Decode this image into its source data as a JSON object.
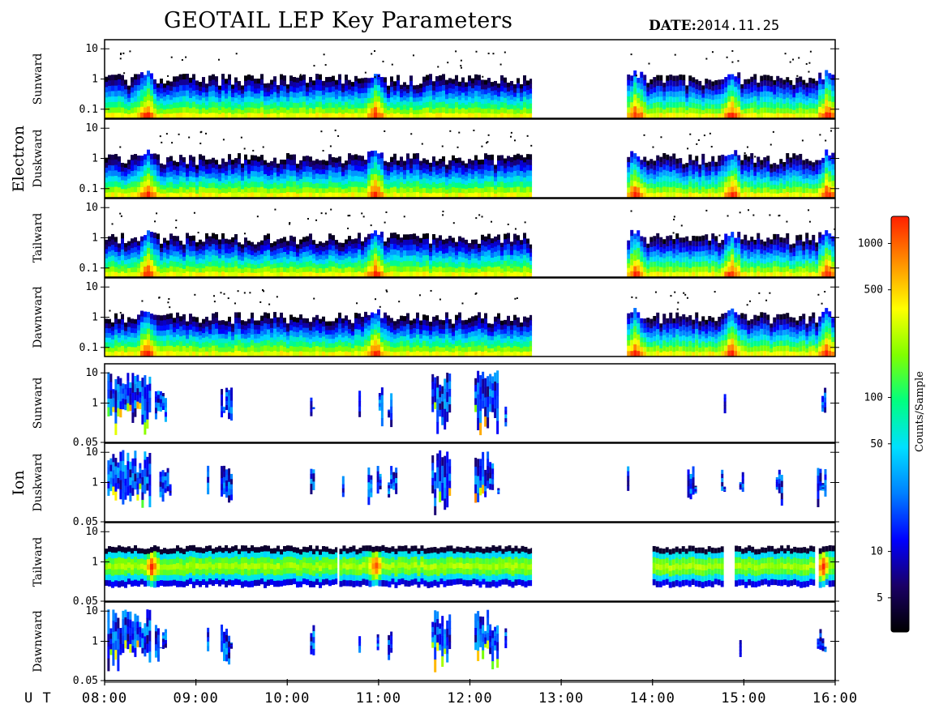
{
  "chart_data": {
    "type": "heatmap",
    "title": "GEOTAIL LEP Key Parameters",
    "date_label": "DATE:",
    "date_value": "2014.11.25",
    "x_axis": {
      "label": "U T",
      "range_hours": [
        8,
        16
      ],
      "tick_labels": [
        "08:00",
        "09:00",
        "10:00",
        "11:00",
        "12:00",
        "13:00",
        "14:00",
        "15:00",
        "16:00"
      ],
      "tick_hours": [
        8,
        9,
        10,
        11,
        12,
        13,
        14,
        15,
        16
      ]
    },
    "colorbar": {
      "label": "Counts/Sample",
      "scale": "log",
      "range": [
        3,
        1500
      ],
      "tick_labels": [
        "5",
        "10",
        "50",
        "100",
        "500",
        "1000"
      ],
      "tick_values": [
        5,
        10,
        50,
        100,
        500,
        1000
      ],
      "colors": [
        "#000000",
        "#1a0066",
        "#0000ff",
        "#0080ff",
        "#00e0ff",
        "#00ff80",
        "#80ff00",
        "#ffff00",
        "#ff9000",
        "#ff2000"
      ]
    },
    "groups": [
      {
        "name": "Electron",
        "panels": [
          {
            "label": "Sunward",
            "y_ticks": [
              "10",
              "1",
              "0.1"
            ],
            "y_values": [
              10,
              1,
              0.1
            ],
            "y_range": [
              0.05,
              20
            ],
            "data_intervals_ut": [
              [
                8.0,
                12.68
              ],
              [
                13.72,
                16.0
              ]
            ],
            "hot_spots_ut": [
              8.45,
              10.95,
              13.8,
              14.85,
              15.9
            ]
          },
          {
            "label": "Duskward",
            "y_ticks": [
              "10",
              "1",
              "0.1"
            ],
            "y_values": [
              10,
              1,
              0.1
            ],
            "y_range": [
              0.05,
              20
            ],
            "data_intervals_ut": [
              [
                8.0,
                12.68
              ],
              [
                13.72,
                16.0
              ]
            ],
            "hot_spots_ut": [
              8.45,
              10.95,
              13.8,
              14.85,
              15.9
            ]
          },
          {
            "label": "Tailward",
            "y_ticks": [
              "10",
              "1",
              "0.1"
            ],
            "y_values": [
              10,
              1,
              0.1
            ],
            "y_range": [
              0.05,
              20
            ],
            "data_intervals_ut": [
              [
                8.0,
                12.68
              ],
              [
                13.72,
                16.0
              ]
            ],
            "hot_spots_ut": [
              8.45,
              10.95,
              13.8,
              14.85,
              15.9
            ]
          },
          {
            "label": "Dawnward",
            "y_ticks": [
              "10",
              "1",
              "0.1"
            ],
            "y_values": [
              10,
              1,
              0.1
            ],
            "y_range": [
              0.05,
              20
            ],
            "data_intervals_ut": [
              [
                8.0,
                12.68
              ],
              [
                13.72,
                16.0
              ]
            ],
            "hot_spots_ut": [
              8.45,
              10.95,
              13.8,
              14.85,
              15.9
            ]
          }
        ]
      },
      {
        "name": "Ion",
        "panels": [
          {
            "label": "Sunward",
            "y_ticks": [
              "10",
              "1",
              "0.05"
            ],
            "y_values": [
              10,
              1,
              0.05
            ],
            "y_range": [
              0.05,
              20
            ],
            "patches_ut": [
              [
                8.03,
                8.5
              ],
              [
                8.55,
                8.68
              ],
              [
                9.27,
                9.4
              ],
              [
                10.25,
                10.3
              ],
              [
                10.78,
                10.8
              ],
              [
                11.0,
                11.04
              ],
              [
                11.1,
                11.14
              ],
              [
                11.58,
                11.77
              ],
              [
                12.05,
                12.3
              ],
              [
                12.38,
                12.4
              ],
              [
                14.78,
                14.8
              ],
              [
                15.85,
                15.88
              ]
            ]
          },
          {
            "label": "Duskward",
            "y_ticks": [
              "10",
              "1",
              "0.05"
            ],
            "y_values": [
              10,
              1,
              0.05
            ],
            "y_range": [
              0.05,
              20
            ],
            "patches_ut": [
              [
                8.03,
                8.5
              ],
              [
                8.6,
                8.72
              ],
              [
                9.12,
                9.14
              ],
              [
                9.27,
                9.4
              ],
              [
                10.25,
                10.3
              ],
              [
                10.6,
                10.62
              ],
              [
                10.88,
                10.93
              ],
              [
                10.98,
                11.03
              ],
              [
                11.1,
                11.18
              ],
              [
                11.58,
                11.77
              ],
              [
                12.05,
                12.25
              ],
              [
                12.3,
                12.32
              ],
              [
                13.72,
                13.74
              ],
              [
                14.38,
                14.46
              ],
              [
                14.75,
                14.8
              ],
              [
                14.95,
                15.0
              ],
              [
                15.35,
                15.42
              ],
              [
                15.8,
                15.9
              ]
            ]
          },
          {
            "label": "Tailward",
            "y_ticks": [
              "10",
              "1",
              "0.05"
            ],
            "y_values": [
              10,
              1,
              0.05
            ],
            "y_range": [
              0.05,
              20
            ],
            "data_intervals_ut": [
              [
                8.0,
                10.55
              ],
              [
                10.57,
                12.68
              ],
              [
                14.0,
                14.78
              ],
              [
                14.9,
                15.78
              ],
              [
                15.82,
                16.0
              ]
            ],
            "hot_spots_ut": [
              8.5,
              10.95,
              15.85
            ]
          },
          {
            "label": "Dawnward",
            "y_ticks": [
              "10",
              "1",
              "0.05"
            ],
            "y_values": [
              10,
              1,
              0.05
            ],
            "y_range": [
              0.05,
              20
            ],
            "patches_ut": [
              [
                8.03,
                8.5
              ],
              [
                8.55,
                8.68
              ],
              [
                9.12,
                9.14
              ],
              [
                9.27,
                9.4
              ],
              [
                10.25,
                10.3
              ],
              [
                10.78,
                10.8
              ],
              [
                10.98,
                11.0
              ],
              [
                11.1,
                11.14
              ],
              [
                11.58,
                11.77
              ],
              [
                12.05,
                12.3
              ],
              [
                12.38,
                12.4
              ],
              [
                14.95,
                14.97
              ],
              [
                15.8,
                15.88
              ]
            ]
          }
        ]
      }
    ]
  }
}
